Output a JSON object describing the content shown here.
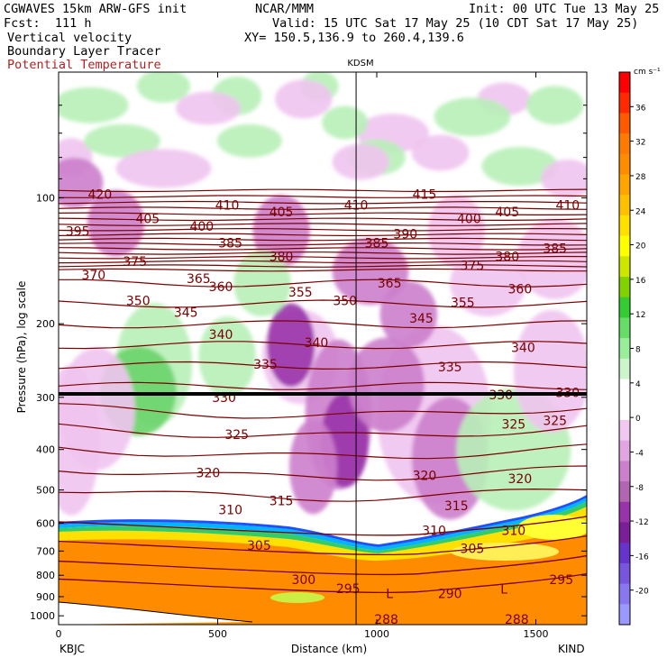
{
  "header": {
    "model": "CGWAVES 15km ARW-GFS init",
    "fcst": "Fcst:  111 h",
    "center": "NCAR/MMM",
    "init": "Init: 00 UTC Tue 13 May 25",
    "valid": "Valid: 15 UTC Sat 17 May 25 (10 CDT Sat 17 May 25)",
    "xy": "XY= 150.5,136.9 to 260.4,139.6",
    "field1": "Vertical velocity",
    "field2": "Boundary Layer Tracer",
    "field3": "Potential Temperature",
    "station_top": "KDSM",
    "station_left": "KBJC",
    "station_right": "KIND"
  },
  "colors": {
    "theta": "#7a0000",
    "tropopause": "#000000"
  },
  "chart_data": {
    "type": "cross-section",
    "xlabel": "Distance (km)",
    "ylabel": "Pressure (hPa), log scale",
    "xlim": [
      0,
      1660
    ],
    "ylim": [
      1050,
      50
    ],
    "y_scale": "log",
    "x_ticks": [
      "0",
      "500",
      "1000",
      "1500"
    ],
    "x_tick_values": [
      0,
      500,
      1000,
      1500
    ],
    "y_ticks": [
      "100",
      "200",
      "300",
      "400",
      "500",
      "600",
      "700",
      "800",
      "900",
      "1000"
    ],
    "y_tick_values": [
      100,
      200,
      300,
      400,
      500,
      600,
      700,
      800,
      900,
      1000
    ],
    "marker_km": 935,
    "colorbar": {
      "units": "cm s⁻¹",
      "labels": [
        "36",
        "32",
        "28",
        "24",
        "20",
        "16",
        "12",
        "8",
        "4",
        "0",
        "-4",
        "-8",
        "-12",
        "-16",
        "-20"
      ],
      "label_values": [
        36,
        32,
        28,
        24,
        20,
        16,
        12,
        8,
        4,
        0,
        -4,
        -8,
        -12,
        -16,
        -20
      ],
      "colors": [
        "#ff0000",
        "#ff2a00",
        "#ff5a00",
        "#ff7a00",
        "#ff8c00",
        "#ffa500",
        "#ffc000",
        "#ffe000",
        "#ffff00",
        "#cce600",
        "#80d200",
        "#33cc33",
        "#66dd66",
        "#99ee99",
        "#ccf5cc",
        "#ffffff",
        "#ffffff",
        "#f0c8f0",
        "#e1a6e1",
        "#cc80cc",
        "#b266b2",
        "#9933aa",
        "#7a1f99",
        "#6633cc",
        "#7755dd",
        "#8877ee",
        "#9999ff"
      ]
    },
    "theta_labels": [
      {
        "text": "420",
        "x": 130,
        "p": 98
      },
      {
        "text": "395",
        "x": 60,
        "p": 120
      },
      {
        "text": "405",
        "x": 280,
        "p": 112
      },
      {
        "text": "410",
        "x": 530,
        "p": 104
      },
      {
        "text": "400",
        "x": 450,
        "p": 117
      },
      {
        "text": "405",
        "x": 700,
        "p": 108
      },
      {
        "text": "385",
        "x": 540,
        "p": 128
      },
      {
        "text": "380",
        "x": 700,
        "p": 138
      },
      {
        "text": "375",
        "x": 240,
        "p": 142
      },
      {
        "text": "410",
        "x": 935,
        "p": 104
      },
      {
        "text": "415",
        "x": 1150,
        "p": 98
      },
      {
        "text": "385",
        "x": 1000,
        "p": 128
      },
      {
        "text": "390",
        "x": 1090,
        "p": 122
      },
      {
        "text": "400",
        "x": 1290,
        "p": 112
      },
      {
        "text": "405",
        "x": 1410,
        "p": 108
      },
      {
        "text": "410",
        "x": 1600,
        "p": 104
      },
      {
        "text": "380",
        "x": 1410,
        "p": 138
      },
      {
        "text": "385",
        "x": 1560,
        "p": 132
      },
      {
        "text": "375",
        "x": 1300,
        "p": 145
      },
      {
        "text": "370",
        "x": 110,
        "p": 153
      },
      {
        "text": "365",
        "x": 440,
        "p": 156
      },
      {
        "text": "360",
        "x": 510,
        "p": 163
      },
      {
        "text": "365",
        "x": 1040,
        "p": 160
      },
      {
        "text": "360",
        "x": 1450,
        "p": 165
      },
      {
        "text": "355",
        "x": 760,
        "p": 168
      },
      {
        "text": "350",
        "x": 900,
        "p": 176
      },
      {
        "text": "350",
        "x": 250,
        "p": 176
      },
      {
        "text": "345",
        "x": 400,
        "p": 188
      },
      {
        "text": "355",
        "x": 1270,
        "p": 178
      },
      {
        "text": "345",
        "x": 1140,
        "p": 194
      },
      {
        "text": "340",
        "x": 510,
        "p": 212
      },
      {
        "text": "340",
        "x": 810,
        "p": 222
      },
      {
        "text": "340",
        "x": 1460,
        "p": 228
      },
      {
        "text": "335",
        "x": 650,
        "p": 250
      },
      {
        "text": "335",
        "x": 1230,
        "p": 254
      },
      {
        "text": "330",
        "x": 520,
        "p": 300
      },
      {
        "text": "330",
        "x": 1390,
        "p": 296
      },
      {
        "text": "330",
        "x": 1600,
        "p": 292
      },
      {
        "text": "325",
        "x": 560,
        "p": 368
      },
      {
        "text": "325",
        "x": 1430,
        "p": 348
      },
      {
        "text": "325",
        "x": 1560,
        "p": 341
      },
      {
        "text": "320",
        "x": 470,
        "p": 455
      },
      {
        "text": "320",
        "x": 1150,
        "p": 462
      },
      {
        "text": "320",
        "x": 1450,
        "p": 470
      },
      {
        "text": "315",
        "x": 700,
        "p": 530
      },
      {
        "text": "315",
        "x": 1250,
        "p": 545
      },
      {
        "text": "310",
        "x": 540,
        "p": 558
      },
      {
        "text": "310",
        "x": 1180,
        "p": 625
      },
      {
        "text": "310",
        "x": 1430,
        "p": 625
      },
      {
        "text": "305",
        "x": 630,
        "p": 678
      },
      {
        "text": "305",
        "x": 1300,
        "p": 690
      },
      {
        "text": "300",
        "x": 770,
        "p": 820
      },
      {
        "text": "295",
        "x": 910,
        "p": 860
      },
      {
        "text": "295",
        "x": 1580,
        "p": 820
      },
      {
        "text": "290",
        "x": 1230,
        "p": 885
      },
      {
        "text": "288",
        "x": 1030,
        "p": 1018
      },
      {
        "text": "288",
        "x": 1440,
        "p": 1018
      },
      {
        "text": "L",
        "x": 1040,
        "p": 885
      },
      {
        "text": "L",
        "x": 1400,
        "p": 862
      }
    ]
  }
}
